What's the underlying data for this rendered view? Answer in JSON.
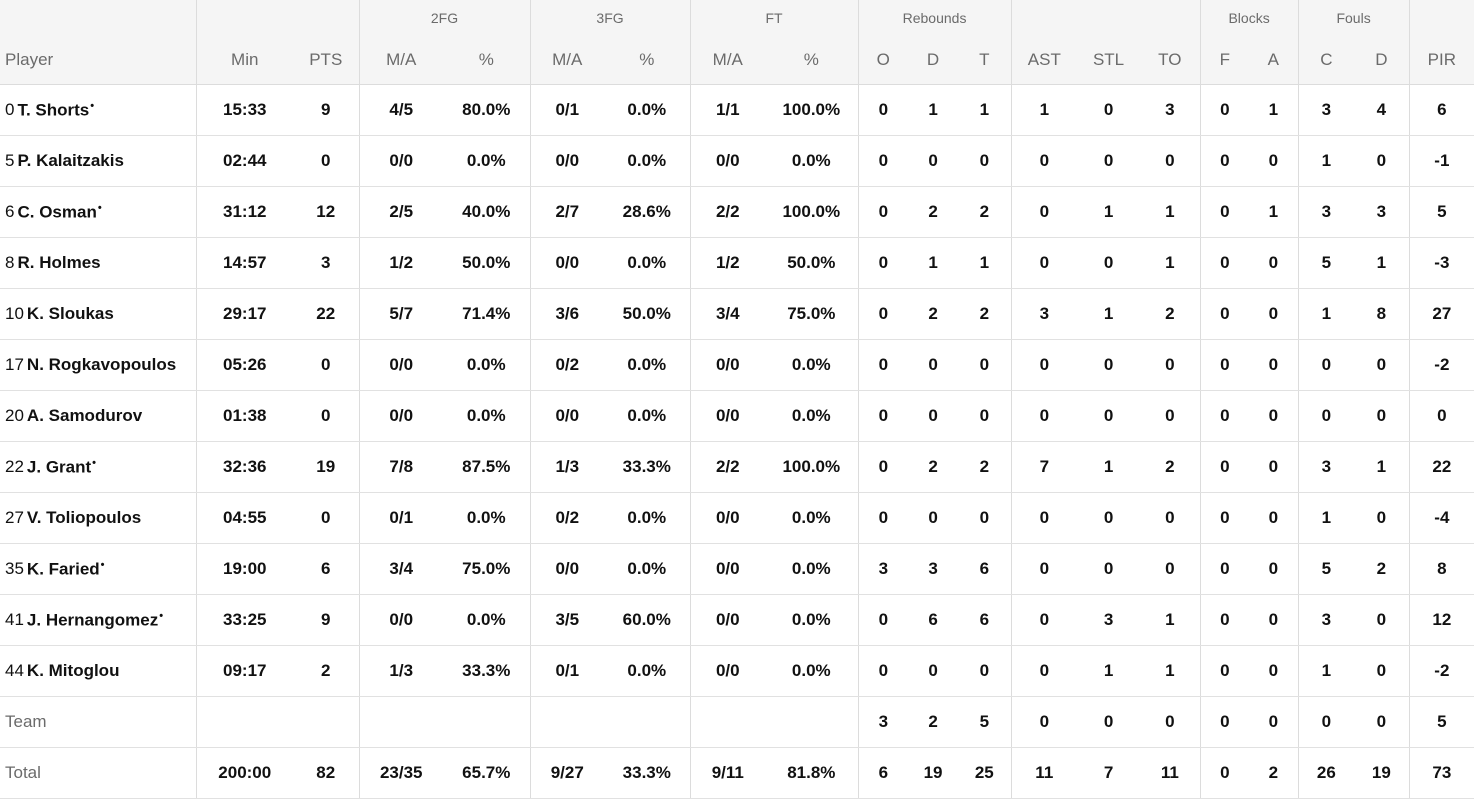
{
  "headers": {
    "groups": {
      "fg2": "2FG",
      "fg3": "3FG",
      "ft": "FT",
      "rebounds": "Rebounds",
      "blocks": "Blocks",
      "fouls": "Fouls"
    },
    "columns": [
      "Player",
      "Min",
      "PTS",
      "M/A",
      "%",
      "M/A",
      "%",
      "M/A",
      "%",
      "O",
      "D",
      "T",
      "AST",
      "STL",
      "TO",
      "F",
      "A",
      "C",
      "D",
      "PIR"
    ]
  },
  "players": [
    {
      "number": "0",
      "name": "T. Shorts",
      "starter": true,
      "stats": [
        "15:33",
        "9",
        "4/5",
        "80.0%",
        "0/1",
        "0.0%",
        "1/1",
        "100.0%",
        "0",
        "1",
        "1",
        "1",
        "0",
        "3",
        "0",
        "1",
        "3",
        "4",
        "6"
      ]
    },
    {
      "number": "5",
      "name": "P. Kalaitzakis",
      "starter": false,
      "stats": [
        "02:44",
        "0",
        "0/0",
        "0.0%",
        "0/0",
        "0.0%",
        "0/0",
        "0.0%",
        "0",
        "0",
        "0",
        "0",
        "0",
        "0",
        "0",
        "0",
        "1",
        "0",
        "-1"
      ]
    },
    {
      "number": "6",
      "name": "C. Osman",
      "starter": true,
      "stats": [
        "31:12",
        "12",
        "2/5",
        "40.0%",
        "2/7",
        "28.6%",
        "2/2",
        "100.0%",
        "0",
        "2",
        "2",
        "0",
        "1",
        "1",
        "0",
        "1",
        "3",
        "3",
        "5"
      ]
    },
    {
      "number": "8",
      "name": "R. Holmes",
      "starter": false,
      "stats": [
        "14:57",
        "3",
        "1/2",
        "50.0%",
        "0/0",
        "0.0%",
        "1/2",
        "50.0%",
        "0",
        "1",
        "1",
        "0",
        "0",
        "1",
        "0",
        "0",
        "5",
        "1",
        "-3"
      ]
    },
    {
      "number": "10",
      "name": "K. Sloukas",
      "starter": false,
      "stats": [
        "29:17",
        "22",
        "5/7",
        "71.4%",
        "3/6",
        "50.0%",
        "3/4",
        "75.0%",
        "0",
        "2",
        "2",
        "3",
        "1",
        "2",
        "0",
        "0",
        "1",
        "8",
        "27"
      ]
    },
    {
      "number": "17",
      "name": "N. Rogkavopoulos",
      "starter": false,
      "stats": [
        "05:26",
        "0",
        "0/0",
        "0.0%",
        "0/2",
        "0.0%",
        "0/0",
        "0.0%",
        "0",
        "0",
        "0",
        "0",
        "0",
        "0",
        "0",
        "0",
        "0",
        "0",
        "-2"
      ]
    },
    {
      "number": "20",
      "name": "A. Samodurov",
      "starter": false,
      "stats": [
        "01:38",
        "0",
        "0/0",
        "0.0%",
        "0/0",
        "0.0%",
        "0/0",
        "0.0%",
        "0",
        "0",
        "0",
        "0",
        "0",
        "0",
        "0",
        "0",
        "0",
        "0",
        "0"
      ]
    },
    {
      "number": "22",
      "name": "J. Grant",
      "starter": true,
      "stats": [
        "32:36",
        "19",
        "7/8",
        "87.5%",
        "1/3",
        "33.3%",
        "2/2",
        "100.0%",
        "0",
        "2",
        "2",
        "7",
        "1",
        "2",
        "0",
        "0",
        "3",
        "1",
        "22"
      ]
    },
    {
      "number": "27",
      "name": "V. Toliopoulos",
      "starter": false,
      "stats": [
        "04:55",
        "0",
        "0/1",
        "0.0%",
        "0/2",
        "0.0%",
        "0/0",
        "0.0%",
        "0",
        "0",
        "0",
        "0",
        "0",
        "0",
        "0",
        "0",
        "1",
        "0",
        "-4"
      ]
    },
    {
      "number": "35",
      "name": "K. Faried",
      "starter": true,
      "stats": [
        "19:00",
        "6",
        "3/4",
        "75.0%",
        "0/0",
        "0.0%",
        "0/0",
        "0.0%",
        "3",
        "3",
        "6",
        "0",
        "0",
        "0",
        "0",
        "0",
        "5",
        "2",
        "8"
      ]
    },
    {
      "number": "41",
      "name": "J. Hernangomez",
      "starter": true,
      "stats": [
        "33:25",
        "9",
        "0/0",
        "0.0%",
        "3/5",
        "60.0%",
        "0/0",
        "0.0%",
        "0",
        "6",
        "6",
        "0",
        "3",
        "1",
        "0",
        "0",
        "3",
        "0",
        "12"
      ]
    },
    {
      "number": "44",
      "name": "K. Mitoglou",
      "starter": false,
      "stats": [
        "09:17",
        "2",
        "1/3",
        "33.3%",
        "0/1",
        "0.0%",
        "0/0",
        "0.0%",
        "0",
        "0",
        "0",
        "0",
        "1",
        "1",
        "0",
        "0",
        "1",
        "0",
        "-2"
      ]
    }
  ],
  "team": {
    "label": "Team",
    "stats": [
      "",
      "",
      "",
      "",
      "",
      "",
      "",
      "",
      "3",
      "2",
      "5",
      "0",
      "0",
      "0",
      "0",
      "0",
      "0",
      "0",
      "5"
    ]
  },
  "total": {
    "label": "Total",
    "stats": [
      "200:00",
      "82",
      "23/35",
      "65.7%",
      "9/27",
      "33.3%",
      "9/11",
      "81.8%",
      "6",
      "19",
      "25",
      "11",
      "7",
      "11",
      "0",
      "2",
      "26",
      "19",
      "73"
    ]
  }
}
